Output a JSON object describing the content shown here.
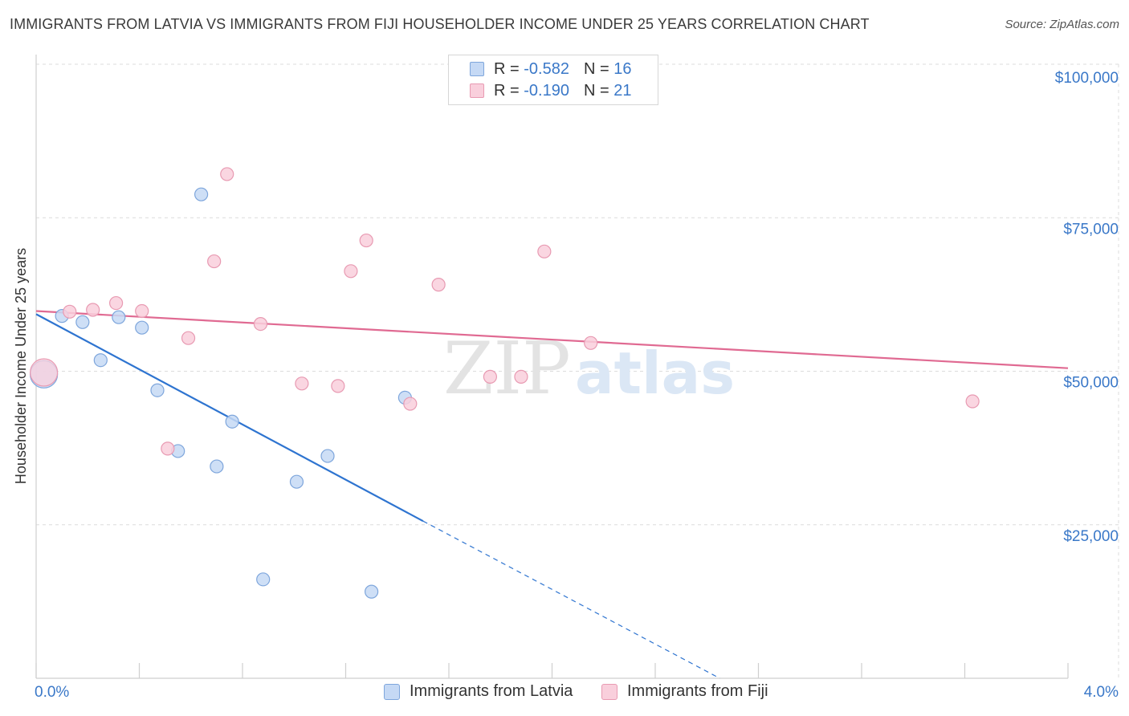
{
  "header": {
    "title": "IMMIGRANTS FROM LATVIA VS IMMIGRANTS FROM FIJI HOUSEHOLDER INCOME UNDER 25 YEARS CORRELATION CHART",
    "source": "Source: ZipAtlas.com"
  },
  "legend_top": {
    "latvia": {
      "r_label": "R =",
      "r_value": "-0.582",
      "n_label": "N =",
      "n_value": "16"
    },
    "fiji": {
      "r_label": "R =",
      "r_value": "-0.190",
      "n_label": "N =",
      "n_value": "21"
    }
  },
  "legend_bottom": {
    "latvia": "Immigrants from Latvia",
    "fiji": "Immigrants from Fiji"
  },
  "colors": {
    "latvia_fill": "#c5d9f5",
    "latvia_stroke": "#7ea6dc",
    "latvia_line": "#2e74d0",
    "fiji_fill": "#f9cfdc",
    "fiji_stroke": "#e89ab2",
    "fiji_line": "#e06a92",
    "tick_text": "#3a78c8",
    "grid": "#dcdcdc"
  },
  "watermark": {
    "zip": "ZIP",
    "atlas": "atlas"
  },
  "chart_data": {
    "type": "scatter",
    "title": "IMMIGRANTS FROM LATVIA VS IMMIGRANTS FROM FIJI HOUSEHOLDER INCOME UNDER 25 YEARS CORRELATION CHART",
    "xlabel": "",
    "ylabel": "Householder Income Under 25 years",
    "xlim": [
      0,
      4
    ],
    "ylim": [
      0,
      102000
    ],
    "x_tick_labels": [
      "0.0%",
      "4.0%"
    ],
    "y_ticks": [
      25000,
      50000,
      75000,
      100000
    ],
    "y_tick_labels": [
      "$25,000",
      "$50,000",
      "$75,000",
      "$100,000"
    ],
    "series": [
      {
        "name": "Immigrants from Latvia",
        "points": [
          {
            "x": 0.03,
            "y": 49500,
            "big": true
          },
          {
            "x": 0.1,
            "y": 59000
          },
          {
            "x": 0.18,
            "y": 58000
          },
          {
            "x": 0.25,
            "y": 51800
          },
          {
            "x": 0.32,
            "y": 58800
          },
          {
            "x": 0.41,
            "y": 57100
          },
          {
            "x": 0.47,
            "y": 46900
          },
          {
            "x": 0.55,
            "y": 37000
          },
          {
            "x": 0.64,
            "y": 78800
          },
          {
            "x": 0.7,
            "y": 34500
          },
          {
            "x": 0.76,
            "y": 41800
          },
          {
            "x": 0.88,
            "y": 16100
          },
          {
            "x": 1.01,
            "y": 32000
          },
          {
            "x": 1.13,
            "y": 36200
          },
          {
            "x": 1.3,
            "y": 14100
          },
          {
            "x": 1.43,
            "y": 45700
          }
        ],
        "trend": {
          "x0": 0.0,
          "y0": 59300,
          "x1": 1.5,
          "y1": 25600,
          "dash_x1": 2.65,
          "dash_y1": 0
        }
      },
      {
        "name": "Immigrants from Fiji",
        "points": [
          {
            "x": 0.03,
            "y": 49800,
            "big": true
          },
          {
            "x": 0.13,
            "y": 59700
          },
          {
            "x": 0.22,
            "y": 60000
          },
          {
            "x": 0.31,
            "y": 61100
          },
          {
            "x": 0.41,
            "y": 59800
          },
          {
            "x": 0.51,
            "y": 37400
          },
          {
            "x": 0.59,
            "y": 55400
          },
          {
            "x": 0.69,
            "y": 67900
          },
          {
            "x": 0.74,
            "y": 82100
          },
          {
            "x": 0.87,
            "y": 57700
          },
          {
            "x": 1.03,
            "y": 48000
          },
          {
            "x": 1.17,
            "y": 47600
          },
          {
            "x": 1.22,
            "y": 66300
          },
          {
            "x": 1.28,
            "y": 71300
          },
          {
            "x": 1.45,
            "y": 44700
          },
          {
            "x": 1.56,
            "y": 64100
          },
          {
            "x": 1.76,
            "y": 49100
          },
          {
            "x": 1.88,
            "y": 49100
          },
          {
            "x": 1.97,
            "y": 69500
          },
          {
            "x": 2.15,
            "y": 54600
          },
          {
            "x": 3.63,
            "y": 45100
          }
        ],
        "trend": {
          "x0": 0.0,
          "y0": 59800,
          "x1": 4.0,
          "y1": 50500
        }
      }
    ]
  }
}
